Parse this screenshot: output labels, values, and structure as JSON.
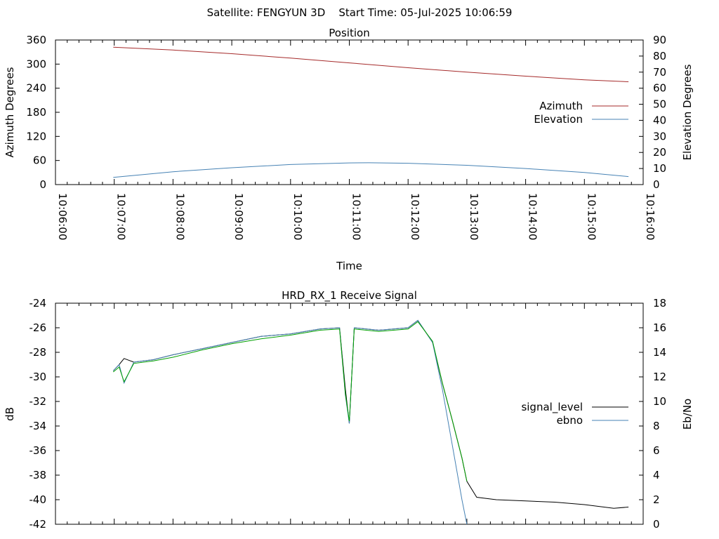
{
  "header": {
    "title": "Satellite: FENGYUN 3D    Start Time: 05-Jul-2025 10:06:59"
  },
  "chart_data": [
    {
      "type": "line",
      "title": "Position",
      "xlabel": "Time",
      "ylabel": "Azimuth Degrees",
      "y2label": "Elevation Degrees",
      "xlim": [
        "10:06:00",
        "10:16:00"
      ],
      "ylim": [
        0,
        360
      ],
      "y2lim": [
        0,
        90
      ],
      "x_ticks": [
        "10:06:00",
        "10:07:00",
        "10:08:00",
        "10:09:00",
        "10:10:00",
        "10:11:00",
        "10:12:00",
        "10:13:00",
        "10:14:00",
        "10:15:00",
        "10:16:00"
      ],
      "y_ticks": [
        0,
        60,
        120,
        180,
        240,
        300,
        360
      ],
      "y2_ticks": [
        0,
        10,
        20,
        30,
        40,
        50,
        60,
        70,
        80,
        90
      ],
      "grid": false,
      "legend": "right",
      "series": [
        {
          "name": "Azimuth",
          "axis": "y",
          "color": "#a52a2a",
          "x": [
            "10:06:59",
            "10:08:00",
            "10:09:00",
            "10:10:00",
            "10:11:00",
            "10:12:00",
            "10:13:00",
            "10:14:00",
            "10:15:00",
            "10:15:45"
          ],
          "y": [
            342,
            335,
            326,
            315,
            303,
            291,
            280,
            270,
            261,
            256
          ]
        },
        {
          "name": "Elevation",
          "axis": "y2",
          "color": "#4682b4",
          "x": [
            "10:06:59",
            "10:08:00",
            "10:09:00",
            "10:10:00",
            "10:11:00",
            "10:11:20",
            "10:12:00",
            "10:13:00",
            "10:14:00",
            "10:15:00",
            "10:15:45"
          ],
          "y": [
            4.5,
            8,
            10.5,
            12.5,
            13.5,
            13.6,
            13.3,
            12,
            10,
            7.5,
            5
          ]
        }
      ]
    },
    {
      "type": "line",
      "title": "HRD_RX_1 Receive Signal",
      "xlabel": "",
      "ylabel": "dB",
      "y2label": "Eb/No",
      "xlim": [
        "10:06:00",
        "10:16:00"
      ],
      "ylim": [
        -42,
        -24
      ],
      "y2lim": [
        0,
        18
      ],
      "x_tick_count": 10,
      "y_ticks": [
        -24,
        -26,
        -28,
        -30,
        -32,
        -34,
        -36,
        -38,
        -40,
        -42
      ],
      "y2_ticks": [
        18,
        16,
        14,
        12,
        10,
        8,
        6,
        4,
        2,
        0
      ],
      "grid": false,
      "legend": "right",
      "series": [
        {
          "name": "signal_level",
          "axis": "y",
          "color": "#000000",
          "x": [
            "10:06:59",
            "10:07:05",
            "10:07:10",
            "10:07:20",
            "10:07:40",
            "10:08:00",
            "10:08:30",
            "10:09:00",
            "10:09:30",
            "10:10:00",
            "10:10:30",
            "10:10:50",
            "10:10:56",
            "10:11:00",
            "10:11:05",
            "10:11:30",
            "10:12:00",
            "10:12:10",
            "10:12:25",
            "10:12:35",
            "10:12:45",
            "10:12:55",
            "10:13:00",
            "10:13:10",
            "10:13:30",
            "10:14:00",
            "10:14:30",
            "10:15:00",
            "10:15:30",
            "10:15:45"
          ],
          "y": [
            -29.5,
            -29,
            -28.5,
            -28.8,
            -28.6,
            -28.2,
            -27.7,
            -27.2,
            -26.7,
            -26.5,
            -26.1,
            -26.0,
            -31.0,
            -33.8,
            -26.0,
            -26.2,
            -26.0,
            -25.4,
            -27.2,
            -30.5,
            -33.5,
            -36.6,
            -38.5,
            -39.8,
            -40.0,
            -40.1,
            -40.2,
            -40.4,
            -40.7,
            -40.6
          ]
        },
        {
          "name": "ebno",
          "axis": "y2",
          "color": "#4682b4",
          "x": [
            "10:06:59",
            "10:07:05",
            "10:07:10",
            "10:07:20",
            "10:07:40",
            "10:08:00",
            "10:08:30",
            "10:09:00",
            "10:09:30",
            "10:10:00",
            "10:10:30",
            "10:10:50",
            "10:10:56",
            "10:11:00",
            "10:11:05",
            "10:11:30",
            "10:12:00",
            "10:12:10",
            "10:12:25",
            "10:12:35",
            "10:12:45",
            "10:12:55",
            "10:13:00"
          ],
          "y": [
            12.5,
            13,
            11.5,
            13.2,
            13.4,
            13.8,
            14.3,
            14.8,
            15.3,
            15.5,
            15.9,
            16.0,
            10.5,
            8.2,
            16.0,
            15.8,
            16.0,
            16.6,
            14.8,
            11.0,
            6.5,
            2.0,
            0
          ]
        },
        {
          "name": "",
          "axis": "y2",
          "color": "#00a000",
          "x": [
            "10:06:59",
            "10:07:05",
            "10:07:10",
            "10:07:20",
            "10:07:40",
            "10:08:00",
            "10:08:30",
            "10:09:00",
            "10:09:30",
            "10:10:00",
            "10:10:30",
            "10:10:50",
            "10:10:56",
            "10:11:00",
            "10:11:05",
            "10:11:30",
            "10:12:00",
            "10:12:10",
            "10:12:25",
            "10:12:35",
            "10:12:45",
            "10:12:55",
            "10:13:00"
          ],
          "y": [
            12.4,
            12.8,
            11.6,
            13.1,
            13.3,
            13.6,
            14.2,
            14.7,
            15.1,
            15.4,
            15.8,
            15.9,
            10.6,
            8.4,
            15.9,
            15.7,
            15.9,
            16.5,
            14.9,
            11.5,
            8.5,
            5.4,
            3.5
          ]
        }
      ]
    }
  ]
}
